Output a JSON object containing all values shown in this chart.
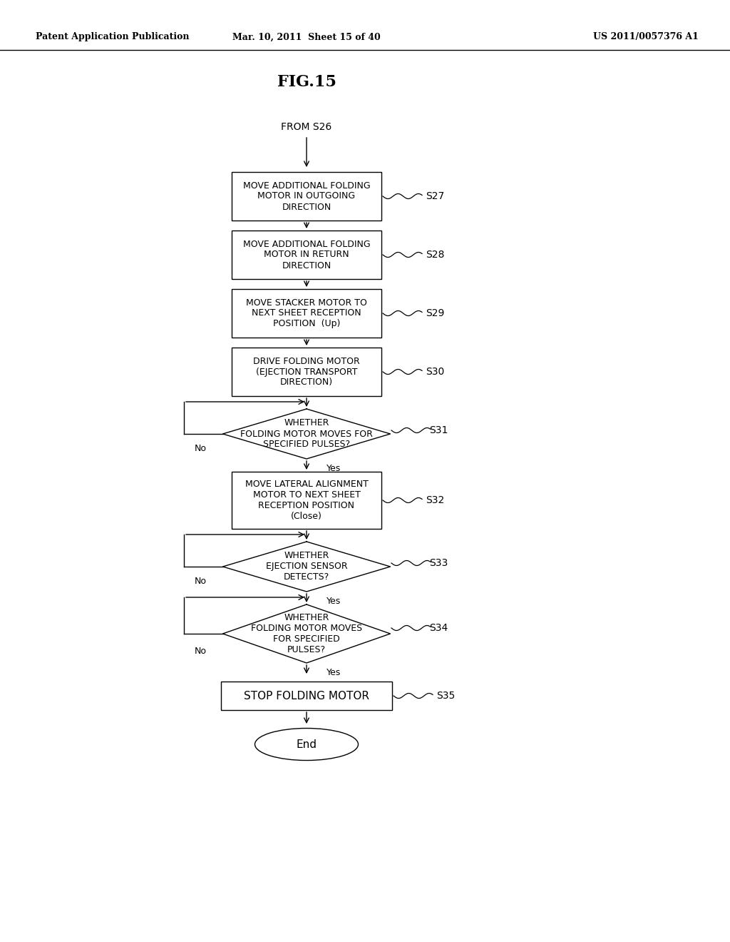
{
  "bg_color": "#ffffff",
  "header_left": "Patent Application Publication",
  "header_mid": "Mar. 10, 2011  Sheet 15 of 40",
  "header_right": "US 2011/0057376 A1",
  "fig_title": "FIG.15",
  "from_label": "FROM S26"
}
